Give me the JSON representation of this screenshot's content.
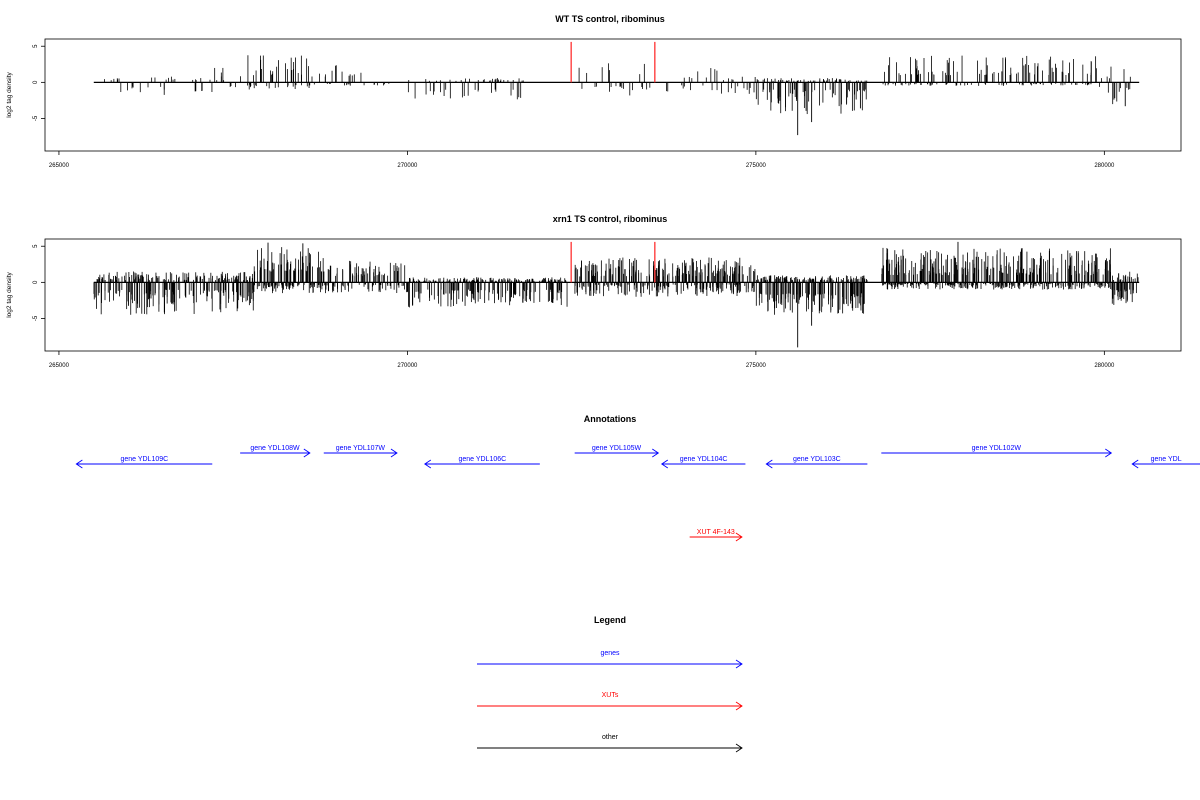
{
  "chart_data": [
    {
      "type": "bar",
      "title": "WT TS control, ribominus",
      "xlabel": "",
      "ylabel": "log2 tag density",
      "xlim": [
        264800,
        281100
      ],
      "ylim": [
        -9.5,
        6
      ],
      "xticks": [
        265000,
        270000,
        275000,
        280000
      ],
      "yticks": [
        5,
        0,
        -5
      ],
      "data_range": [
        265500,
        280500
      ],
      "markers": [
        272350,
        273550
      ],
      "regions": [
        {
          "start": 265600,
          "end": 266500,
          "density": 0.25,
          "pos": [
            0.3,
            0.8
          ],
          "neg": [
            0.5,
            1.5
          ]
        },
        {
          "start": 266500,
          "end": 267200,
          "density": 0.35,
          "pos": [
            0.3,
            0.8
          ],
          "neg": [
            1.0,
            2.3
          ]
        },
        {
          "start": 267200,
          "end": 267700,
          "density": 0.3,
          "pos": [
            0.3,
            2.8
          ],
          "neg": [
            0.5,
            1.2
          ]
        },
        {
          "start": 267700,
          "end": 268600,
          "density": 0.75,
          "pos": [
            1.0,
            3.8
          ],
          "neg": [
            0.3,
            1.0
          ]
        },
        {
          "start": 268600,
          "end": 269800,
          "density": 0.35,
          "pos": [
            0.8,
            2.6
          ],
          "neg": [
            0.2,
            0.5
          ]
        },
        {
          "start": 270000,
          "end": 271700,
          "density": 0.45,
          "pos": [
            0.2,
            0.6
          ],
          "neg": [
            1.0,
            2.5
          ]
        },
        {
          "start": 272400,
          "end": 273500,
          "density": 0.3,
          "pos": [
            0.8,
            2.8
          ],
          "neg": [
            0.5,
            2.0
          ]
        },
        {
          "start": 273700,
          "end": 274500,
          "density": 0.3,
          "pos": [
            0.3,
            2.0
          ],
          "neg": [
            0.4,
            1.5
          ]
        },
        {
          "start": 274500,
          "end": 275000,
          "density": 0.45,
          "pos": [
            0.3,
            1.0
          ],
          "neg": [
            0.5,
            2.0
          ]
        },
        {
          "start": 275000,
          "end": 276600,
          "density": 1.0,
          "pos": [
            0.2,
            0.6
          ],
          "neg": [
            1.0,
            4.5
          ]
        },
        {
          "start": 276800,
          "end": 279900,
          "density": 0.75,
          "pos": [
            1.0,
            3.8
          ],
          "neg": [
            0.2,
            0.5
          ]
        },
        {
          "start": 279900,
          "end": 280400,
          "density": 0.5,
          "pos": [
            0.5,
            2.5
          ],
          "neg": [
            0.5,
            3.3
          ]
        }
      ],
      "spikes": [
        [
          275600,
          -7.3
        ],
        [
          275800,
          -5.5
        ],
        [
          276500,
          -3.6
        ],
        [
          280300,
          -3.3
        ]
      ]
    },
    {
      "type": "bar",
      "title": "xrn1 TS control, ribominus",
      "xlabel": "",
      "ylabel": "log2 tag density",
      "xlim": [
        264800,
        281100
      ],
      "ylim": [
        -9.5,
        6
      ],
      "xticks": [
        265000,
        270000,
        275000,
        280000
      ],
      "yticks": [
        5,
        0,
        -5
      ],
      "data_range": [
        265500,
        280500
      ],
      "markers": [
        272350,
        273550
      ],
      "regions": [
        {
          "start": 265500,
          "end": 267800,
          "density": 1.8,
          "pos": [
            0.3,
            1.5
          ],
          "neg": [
            1.0,
            4.5
          ]
        },
        {
          "start": 267800,
          "end": 268800,
          "density": 2.0,
          "pos": [
            1.5,
            5.0
          ],
          "neg": [
            0.3,
            1.5
          ]
        },
        {
          "start": 268800,
          "end": 270000,
          "density": 1.3,
          "pos": [
            0.8,
            3.0
          ],
          "neg": [
            0.3,
            1.5
          ]
        },
        {
          "start": 270000,
          "end": 272300,
          "density": 1.8,
          "pos": [
            0.2,
            0.7
          ],
          "neg": [
            1.0,
            3.5
          ]
        },
        {
          "start": 272400,
          "end": 274800,
          "density": 2.0,
          "pos": [
            0.8,
            3.5
          ],
          "neg": [
            0.3,
            2.0
          ]
        },
        {
          "start": 274800,
          "end": 275000,
          "density": 1.2,
          "pos": [
            0.5,
            2.5
          ],
          "neg": [
            0.5,
            2.0
          ]
        },
        {
          "start": 275000,
          "end": 276600,
          "density": 2.2,
          "pos": [
            0.3,
            1.0
          ],
          "neg": [
            1.5,
            4.5
          ]
        },
        {
          "start": 276800,
          "end": 280100,
          "density": 2.2,
          "pos": [
            1.0,
            4.8
          ],
          "neg": [
            0.2,
            1.0
          ]
        },
        {
          "start": 280100,
          "end": 280500,
          "density": 2.0,
          "pos": [
            0.3,
            1.5
          ],
          "neg": [
            1.0,
            3.3
          ]
        }
      ],
      "spikes": [
        [
          275600,
          -9.0
        ],
        [
          275800,
          -6.0
        ],
        [
          277900,
          5.6
        ],
        [
          268000,
          5.5
        ],
        [
          268500,
          5.4
        ]
      ]
    }
  ],
  "annotations": {
    "title": "Annotations",
    "items": [
      {
        "label": "gene YDL109C",
        "start": 265250,
        "end": 267200,
        "strand": "-",
        "kind": "gene"
      },
      {
        "label": "gene YDL108W",
        "start": 267600,
        "end": 268600,
        "strand": "+",
        "kind": "gene"
      },
      {
        "label": "gene YDL107W",
        "start": 268800,
        "end": 269850,
        "strand": "+",
        "kind": "gene"
      },
      {
        "label": "gene YDL106C",
        "start": 270250,
        "end": 271900,
        "strand": "-",
        "kind": "gene"
      },
      {
        "label": "gene YDL105W",
        "start": 272400,
        "end": 273600,
        "strand": "+",
        "kind": "gene"
      },
      {
        "label": "gene YDL104C",
        "start": 273650,
        "end": 274850,
        "strand": "-",
        "kind": "gene"
      },
      {
        "label": "gene YDL103C",
        "start": 275150,
        "end": 276600,
        "strand": "-",
        "kind": "gene"
      },
      {
        "label": "gene YDL102W",
        "start": 276800,
        "end": 280100,
        "strand": "+",
        "kind": "gene"
      },
      {
        "label": "gene YDL",
        "start": 280400,
        "end": 281500,
        "strand": "-",
        "kind": "gene"
      },
      {
        "label": "XUT 4F-143",
        "start": 274050,
        "end": 274800,
        "strand": "+",
        "kind": "xut"
      }
    ]
  },
  "legend": {
    "title": "Legend",
    "items": [
      {
        "label": "genes",
        "color": "#0000ff"
      },
      {
        "label": "XUTs",
        "color": "#ff0000"
      },
      {
        "label": "other",
        "color": "#000000"
      }
    ]
  },
  "colors": {
    "gene": "#0000ff",
    "xut": "#ff0000",
    "other": "#000000",
    "marker": "#ff4040",
    "bars": "#000000"
  }
}
